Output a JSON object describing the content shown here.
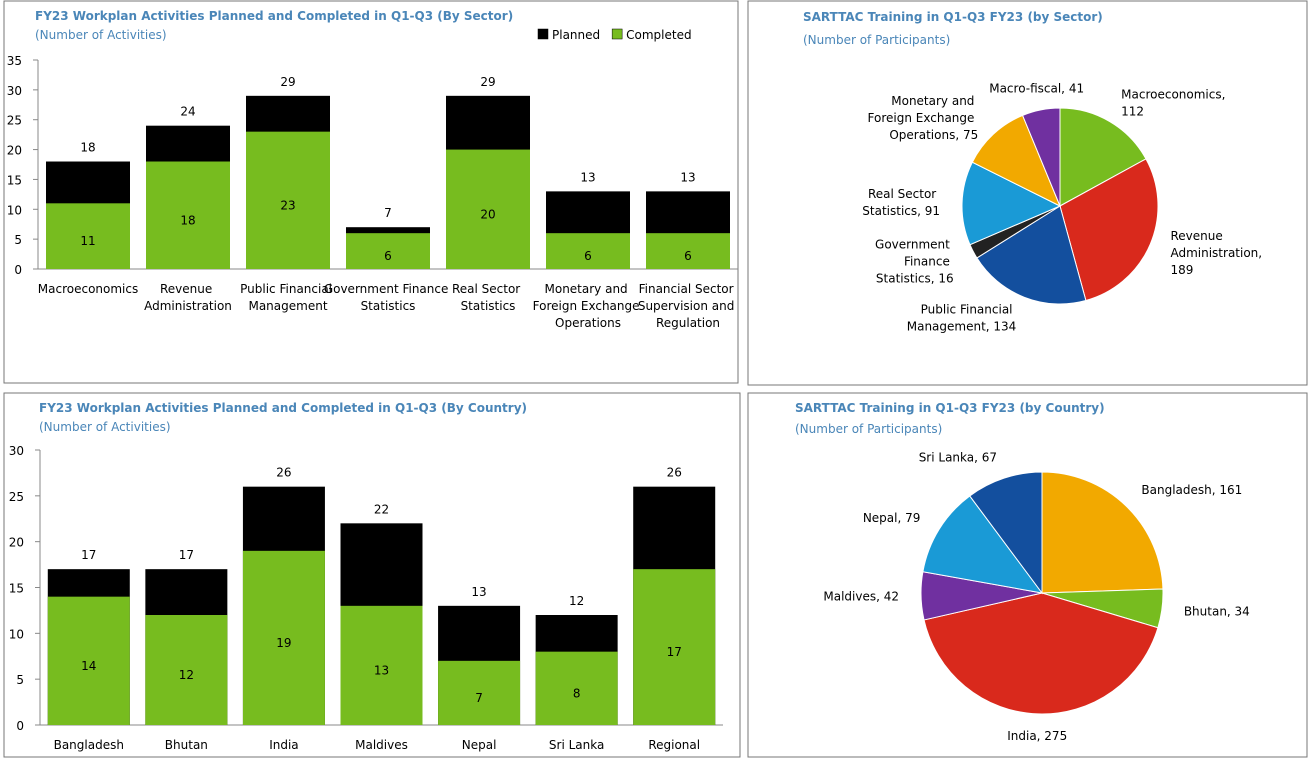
{
  "chart_data": [
    {
      "type": "bar",
      "title": "FY23 Workplan Activities Planned and Completed in Q1-Q3 (By Sector)",
      "subtitle": "(Number of Activities)",
      "categories": [
        "Macroeconomics",
        "Revenue Administration",
        "Public Financial Management",
        "Government Finance Statistics",
        "Real Sector Statistics",
        "Monetary and Foreign Exchange Operations",
        "Financial Sector Supervision and Regulation"
      ],
      "series": [
        {
          "name": "Planned",
          "color": "#000000",
          "values": [
            18,
            24,
            29,
            7,
            29,
            13,
            13
          ]
        },
        {
          "name": "Completed",
          "color": "#77bc1f",
          "values": [
            11,
            18,
            23,
            6,
            20,
            6,
            6
          ]
        }
      ],
      "ylim": [
        0,
        35
      ],
      "yticks": [
        0,
        5,
        10,
        15,
        20,
        25,
        30,
        35
      ],
      "legend": "top-right"
    },
    {
      "type": "pie",
      "title": "SARTTAC Training in Q1-Q3 FY23 (by Sector)",
      "subtitle": "(Number of Participants)",
      "values": [
        112,
        189,
        134,
        16,
        91,
        75,
        41
      ],
      "value_labels": [
        "Macroeconomics, 112",
        "Revenue Administration, 189",
        "Public Financial Management, 134",
        "Government Finance Statistics, 16",
        "Real Sector Statistics, 91",
        "Monetary and Foreign Exchange Operations, 75",
        "Macro-fiscal, 41"
      ],
      "colors": [
        "#77bc1f",
        "#d9291c",
        "#134f9e",
        "#222222",
        "#1a9ad6",
        "#f2a900",
        "#7030a0"
      ]
    },
    {
      "type": "bar",
      "title": "FY23 Workplan Activities Planned and Completed in Q1-Q3 (By Country)",
      "subtitle": "(Number of Activities)",
      "categories": [
        "Bangladesh",
        "Bhutan",
        "India",
        "Maldives",
        "Nepal",
        "Sri Lanka",
        "Regional"
      ],
      "series": [
        {
          "color": "#000000",
          "values": [
            17,
            17,
            26,
            22,
            13,
            12,
            26
          ]
        },
        {
          "color": "#77bc1f",
          "values": [
            14,
            12,
            19,
            13,
            7,
            8,
            17
          ]
        }
      ],
      "ylim": [
        0,
        30
      ],
      "yticks": [
        0,
        5,
        10,
        15,
        20,
        25,
        30
      ]
    },
    {
      "type": "pie",
      "title": "SARTTAC Training in Q1-Q3 FY23 (by Country)",
      "subtitle": "(Number of Participants)",
      "values": [
        161,
        34,
        275,
        42,
        79,
        67
      ],
      "value_labels": [
        "Bangladesh, 161",
        "Bhutan, 34",
        "India, 275",
        "Maldives, 42",
        "Nepal, 79",
        "Sri Lanka, 67"
      ],
      "colors": [
        "#f2a900",
        "#77bc1f",
        "#d9291c",
        "#7030a0",
        "#1a9ad6",
        "#134f9e"
      ]
    }
  ]
}
